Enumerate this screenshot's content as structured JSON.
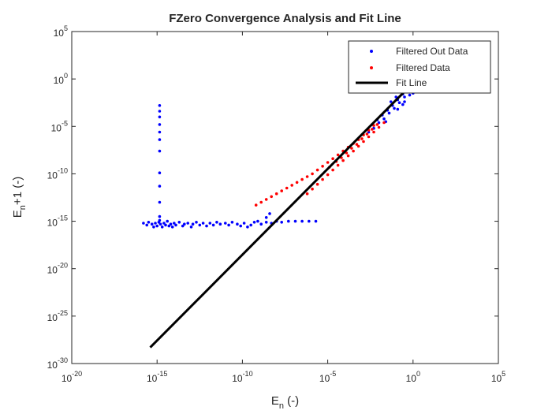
{
  "chart_data": {
    "type": "scatter",
    "title": "FZero Convergence Analysis and Fit Line",
    "xlabel": {
      "main": "E",
      "sub": "n",
      "rest": " (-)"
    },
    "ylabel": {
      "main": "E",
      "sub": "n",
      "rest": "+1 (-)"
    },
    "xscale": "log",
    "yscale": "log",
    "xlim_exp": [
      -20,
      5
    ],
    "ylim_exp": [
      -30,
      5
    ],
    "x_ticks": [
      {
        "exp": -20,
        "base": "10",
        "sup": "-20"
      },
      {
        "exp": -15,
        "base": "10",
        "sup": "-15"
      },
      {
        "exp": -10,
        "base": "10",
        "sup": "-10"
      },
      {
        "exp": -5,
        "base": "10",
        "sup": "-5"
      },
      {
        "exp": 0,
        "base": "10",
        "sup": "0"
      },
      {
        "exp": 5,
        "base": "10",
        "sup": "5"
      }
    ],
    "y_ticks": [
      {
        "exp": -30,
        "base": "10",
        "sup": "-30"
      },
      {
        "exp": -25,
        "base": "10",
        "sup": "-25"
      },
      {
        "exp": -20,
        "base": "10",
        "sup": "-20"
      },
      {
        "exp": -15,
        "base": "10",
        "sup": "-15"
      },
      {
        "exp": -10,
        "base": "10",
        "sup": "-10"
      },
      {
        "exp": -5,
        "base": "10",
        "sup": "-5"
      },
      {
        "exp": 0,
        "base": "10",
        "sup": "0"
      },
      {
        "exp": 5,
        "base": "10",
        "sup": "5"
      }
    ],
    "grid": false,
    "legend_position": "top-right",
    "series": [
      {
        "name": "Filtered Out Data",
        "kind": "points",
        "color": "#0000ff",
        "points_log10": [
          [
            -15.8,
            -15.2
          ],
          [
            -15.6,
            -15.4
          ],
          [
            -15.5,
            -15.1
          ],
          [
            -15.3,
            -15.3
          ],
          [
            -15.2,
            -15.6
          ],
          [
            -15.1,
            -15.2
          ],
          [
            -15.0,
            -15.5
          ],
          [
            -14.9,
            -15.1
          ],
          [
            -14.8,
            -15.3
          ],
          [
            -14.7,
            -15.6
          ],
          [
            -14.6,
            -15.2
          ],
          [
            -14.5,
            -15.4
          ],
          [
            -14.4,
            -15.0
          ],
          [
            -14.3,
            -15.5
          ],
          [
            -14.2,
            -15.3
          ],
          [
            -14.1,
            -15.6
          ],
          [
            -14.0,
            -15.2
          ],
          [
            -13.9,
            -15.4
          ],
          [
            -13.7,
            -15.1
          ],
          [
            -13.5,
            -15.5
          ],
          [
            -13.4,
            -15.3
          ],
          [
            -13.2,
            -15.2
          ],
          [
            -13.0,
            -15.6
          ],
          [
            -12.9,
            -15.3
          ],
          [
            -12.7,
            -15.1
          ],
          [
            -12.5,
            -15.4
          ],
          [
            -12.3,
            -15.2
          ],
          [
            -12.1,
            -15.5
          ],
          [
            -11.9,
            -15.2
          ],
          [
            -11.7,
            -15.4
          ],
          [
            -11.5,
            -15.1
          ],
          [
            -11.3,
            -15.3
          ],
          [
            -11.0,
            -15.2
          ],
          [
            -10.8,
            -15.4
          ],
          [
            -10.6,
            -15.1
          ],
          [
            -10.3,
            -15.3
          ],
          [
            -10.1,
            -15.5
          ],
          [
            -9.9,
            -15.2
          ],
          [
            -9.7,
            -15.6
          ],
          [
            -9.5,
            -15.4
          ],
          [
            -9.3,
            -15.1
          ],
          [
            -9.1,
            -15.0
          ],
          [
            -8.9,
            -15.3
          ],
          [
            -8.6,
            -15.1
          ],
          [
            -8.3,
            -15.2
          ],
          [
            -8.0,
            -15.0
          ],
          [
            -7.7,
            -15.1
          ],
          [
            -7.3,
            -15.0
          ],
          [
            -6.9,
            -15.0
          ],
          [
            -6.5,
            -15.0
          ],
          [
            -6.1,
            -15.0
          ],
          [
            -5.7,
            -15.0
          ],
          [
            -8.6,
            -14.6
          ],
          [
            -8.4,
            -14.2
          ],
          [
            -14.85,
            -2.8
          ],
          [
            -14.85,
            -3.4
          ],
          [
            -14.85,
            -4.0
          ],
          [
            -14.85,
            -4.8
          ],
          [
            -14.85,
            -5.6
          ],
          [
            -14.85,
            -6.4
          ],
          [
            -14.85,
            -7.6
          ],
          [
            -14.85,
            -9.9
          ],
          [
            -14.85,
            -11.3
          ],
          [
            -14.85,
            -13.0
          ],
          [
            -14.85,
            -14.5
          ],
          [
            -14.85,
            -14.9
          ],
          [
            -2.6,
            -5.6
          ],
          [
            -2.3,
            -5.2
          ],
          [
            -2.0,
            -4.6
          ],
          [
            -1.7,
            -4.2
          ],
          [
            -1.4,
            -3.6
          ],
          [
            -1.1,
            -3.1
          ],
          [
            -0.8,
            -2.5
          ],
          [
            -0.5,
            -1.9
          ],
          [
            -0.2,
            -1.3
          ],
          [
            0.1,
            -0.7
          ],
          [
            0.3,
            -0.3
          ],
          [
            -2.4,
            -4.8
          ],
          [
            -2.1,
            -4.3
          ],
          [
            -1.8,
            -3.8
          ],
          [
            -1.5,
            -3.3
          ],
          [
            -1.2,
            -2.8
          ],
          [
            -0.9,
            -2.2
          ],
          [
            -0.6,
            -1.6
          ],
          [
            -0.3,
            -1.0
          ],
          [
            -1.3,
            -2.4
          ],
          [
            -1.0,
            -1.9
          ],
          [
            -0.7,
            -1.3
          ],
          [
            -0.4,
            -0.8
          ],
          [
            -0.1,
            -0.4
          ],
          [
            0.2,
            -0.6
          ],
          [
            0.5,
            -0.9
          ],
          [
            0.8,
            -0.8
          ],
          [
            1.0,
            -1.2
          ],
          [
            -1.6,
            -4.5
          ],
          [
            -0.9,
            -3.2
          ],
          [
            -0.5,
            -2.4
          ],
          [
            -0.2,
            -1.7
          ],
          [
            0.4,
            -1.1
          ],
          [
            0.0,
            -1.5
          ],
          [
            -0.6,
            -2.7
          ],
          [
            1.1,
            -0.9
          ]
        ]
      },
      {
        "name": "Filtered Data",
        "kind": "points",
        "color": "#ff0000",
        "points_log10": [
          [
            -9.2,
            -13.3
          ],
          [
            -8.9,
            -13.0
          ],
          [
            -8.6,
            -12.7
          ],
          [
            -8.3,
            -12.4
          ],
          [
            -8.0,
            -12.1
          ],
          [
            -7.7,
            -11.8
          ],
          [
            -7.4,
            -11.5
          ],
          [
            -7.1,
            -11.2
          ],
          [
            -6.8,
            -10.9
          ],
          [
            -6.5,
            -10.6
          ],
          [
            -6.2,
            -10.3
          ],
          [
            -5.9,
            -10.0
          ],
          [
            -5.6,
            -9.6
          ],
          [
            -5.3,
            -9.2
          ],
          [
            -5.0,
            -8.8
          ],
          [
            -4.7,
            -8.4
          ],
          [
            -4.4,
            -8.0
          ],
          [
            -4.1,
            -7.6
          ],
          [
            -3.8,
            -7.2
          ],
          [
            -3.5,
            -6.8
          ],
          [
            -3.2,
            -6.4
          ],
          [
            -2.9,
            -5.9
          ],
          [
            -2.6,
            -5.4
          ],
          [
            -2.3,
            -4.9
          ],
          [
            -6.2,
            -12.1
          ],
          [
            -5.9,
            -11.6
          ],
          [
            -5.6,
            -11.1
          ],
          [
            -5.3,
            -10.6
          ],
          [
            -5.0,
            -10.1
          ],
          [
            -4.7,
            -9.6
          ],
          [
            -4.4,
            -9.1
          ],
          [
            -4.1,
            -8.6
          ],
          [
            -3.8,
            -8.1
          ],
          [
            -3.5,
            -7.6
          ],
          [
            -3.2,
            -7.1
          ],
          [
            -2.9,
            -6.6
          ],
          [
            -2.6,
            -6.1
          ],
          [
            -2.3,
            -5.6
          ],
          [
            -2.0,
            -5.1
          ],
          [
            -1.7,
            -4.6
          ],
          [
            -4.9,
            -9.3
          ],
          [
            -4.5,
            -8.7
          ],
          [
            -4.2,
            -8.3
          ],
          [
            -3.9,
            -7.8
          ],
          [
            -3.6,
            -7.3
          ],
          [
            -3.3,
            -6.9
          ],
          [
            -3.0,
            -6.3
          ],
          [
            -2.7,
            -5.8
          ],
          [
            -2.4,
            -5.3
          ],
          [
            -2.1,
            -4.8
          ]
        ]
      },
      {
        "name": "Fit Line",
        "kind": "line",
        "color": "#000000",
        "points_log10": [
          [
            -15.4,
            -28.3
          ],
          [
            -0.1,
            -0.6
          ]
        ]
      }
    ]
  }
}
